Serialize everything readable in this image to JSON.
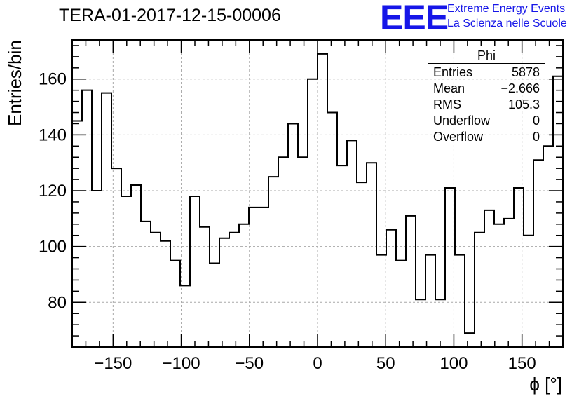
{
  "title": "TERA-01-2017-12-15-00006",
  "logo": {
    "mark": "EEE",
    "line1": "Extreme Energy Events",
    "line2": "La Scienza nelle Scuole",
    "color": "#1616e8"
  },
  "stats": {
    "name": "Phi",
    "rows": [
      {
        "label": "Entries",
        "value": "5878"
      },
      {
        "label": "Mean",
        "value": "−2.666"
      },
      {
        "label": "RMS",
        "value": "105.3"
      },
      {
        "label": "Underflow",
        "value": "0"
      },
      {
        "label": "Overflow",
        "value": "0"
      }
    ]
  },
  "chart_data": {
    "type": "bar",
    "histogram": true,
    "title": "TERA-01-2017-12-15-00006",
    "xlabel": "ϕ [°]",
    "ylabel": "Entries/bin",
    "xlim": [
      -180,
      180
    ],
    "ylim": [
      64,
      174
    ],
    "bin_width": 7.2,
    "xticks": [
      -150,
      -100,
      -50,
      0,
      50,
      100,
      150
    ],
    "xtick_labels": [
      "−150",
      "−100",
      "−50",
      "0",
      "50",
      "100",
      "150"
    ],
    "yticks": [
      80,
      100,
      120,
      140,
      160
    ],
    "yticks_labels": [
      "80",
      "100",
      "120",
      "140",
      "160"
    ],
    "grid": true,
    "line_color": "#000000",
    "values": [
      145,
      156,
      120,
      155,
      128,
      118,
      122,
      109,
      105,
      102,
      95,
      86,
      118,
      107,
      94,
      103,
      105,
      108,
      114,
      114,
      125,
      132,
      144,
      132,
      160,
      169,
      148,
      129,
      138,
      123,
      130,
      97,
      106,
      95,
      111,
      81,
      97,
      81,
      121,
      97,
      69,
      105,
      113,
      108,
      110,
      121,
      104,
      131,
      136,
      161
    ]
  }
}
